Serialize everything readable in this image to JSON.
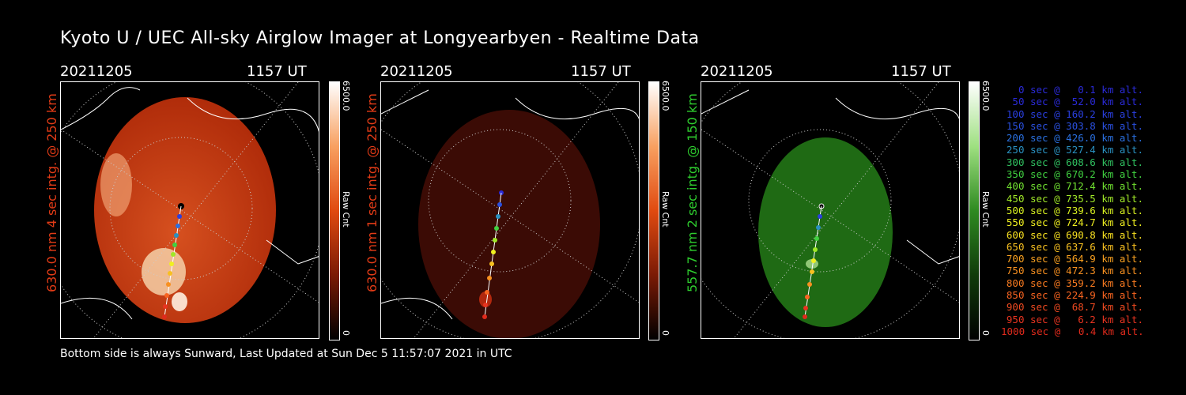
{
  "title": "Kyoto U / UEC All-sky Airglow Imager at Longyearbyen - Realtime Data",
  "panels": [
    {
      "date": "20211205",
      "time": "1157 UT",
      "label": "630.0 nm 4 sec intg. @ 250 km",
      "label_color": "#e23b16",
      "cbar_max": "6500.0",
      "cbar_min": "0",
      "cbar_unit": "Raw Cnt",
      "sky_color": "#c63812"
    },
    {
      "date": "20211205",
      "time": "1157 UT",
      "label": "630.0 nm 1 sec intg. @ 250 km",
      "label_color": "#e23b16",
      "cbar_max": "6500.0",
      "cbar_min": "0",
      "cbar_unit": "Raw Cnt",
      "sky_color": "#3b0b05"
    },
    {
      "date": "20211205",
      "time": "1157 UT",
      "label": "557.7 nm 2 sec intg. @ 150 km",
      "label_color": "#2ecc2e",
      "cbar_max": "6500.0",
      "cbar_min": "0",
      "cbar_unit": "Raw Cnt",
      "sky_color": "#1f6a14"
    }
  ],
  "footer": "Bottom side is always Sunward, Last Updated at Sun Dec  5 11:57:07 2021 in UTC",
  "legend": [
    {
      "text": "0 sec @   0.1 km alt.",
      "color": "#2a2ad8"
    },
    {
      "text": "50 sec @  52.0 km alt.",
      "color": "#2a2ad8"
    },
    {
      "text": "100 sec @ 160.2 km alt.",
      "color": "#2a3fe0"
    },
    {
      "text": "150 sec @ 303.8 km alt.",
      "color": "#2a50e0"
    },
    {
      "text": "200 sec @ 426.0 km alt.",
      "color": "#2a70e0"
    },
    {
      "text": "250 sec @ 527.4 km alt.",
      "color": "#2a90c0"
    },
    {
      "text": "300 sec @ 608.6 km alt.",
      "color": "#30c060"
    },
    {
      "text": "350 sec @ 670.2 km alt.",
      "color": "#40d040"
    },
    {
      "text": "400 sec @ 712.4 km alt.",
      "color": "#70e030"
    },
    {
      "text": "450 sec @ 735.5 km alt.",
      "color": "#a0e828"
    },
    {
      "text": "500 sec @ 739.6 km alt.",
      "color": "#d8f020"
    },
    {
      "text": "550 sec @ 724.7 km alt.",
      "color": "#f0f020"
    },
    {
      "text": "600 sec @ 690.8 km alt.",
      "color": "#f8e020"
    },
    {
      "text": "650 sec @ 637.6 km alt.",
      "color": "#f8c020"
    },
    {
      "text": "700 sec @ 564.9 km alt.",
      "color": "#f8a020"
    },
    {
      "text": "750 sec @ 472.3 km alt.",
      "color": "#f89020"
    },
    {
      "text": "800 sec @ 359.2 km alt.",
      "color": "#f87a20"
    },
    {
      "text": "850 sec @ 224.9 km alt.",
      "color": "#f86420"
    },
    {
      "text": "900 sec @  68.7 km alt.",
      "color": "#f04a20"
    },
    {
      "text": "950 sec @   6.2 km alt.",
      "color": "#e83420"
    },
    {
      "text": "1000 sec @   0.4 km alt.",
      "color": "#e02a1c"
    }
  ]
}
